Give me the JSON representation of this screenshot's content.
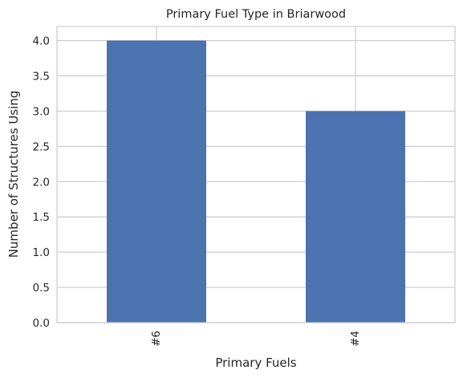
{
  "chart_data": {
    "type": "bar",
    "title": "Primary Fuel Type in Briarwood",
    "xlabel": "Primary Fuels",
    "ylabel": "Number of Structures Using",
    "categories": [
      "#6",
      "#4"
    ],
    "values": [
      4.0,
      3.0
    ],
    "ylim": [
      0,
      4.2
    ],
    "yticks": [
      "0.0",
      "0.5",
      "1.0",
      "1.5",
      "2.0",
      "2.5",
      "3.0",
      "3.5",
      "4.0"
    ],
    "grid": true,
    "bar_color": "#4c72b0",
    "xtick_rotation": 90
  }
}
